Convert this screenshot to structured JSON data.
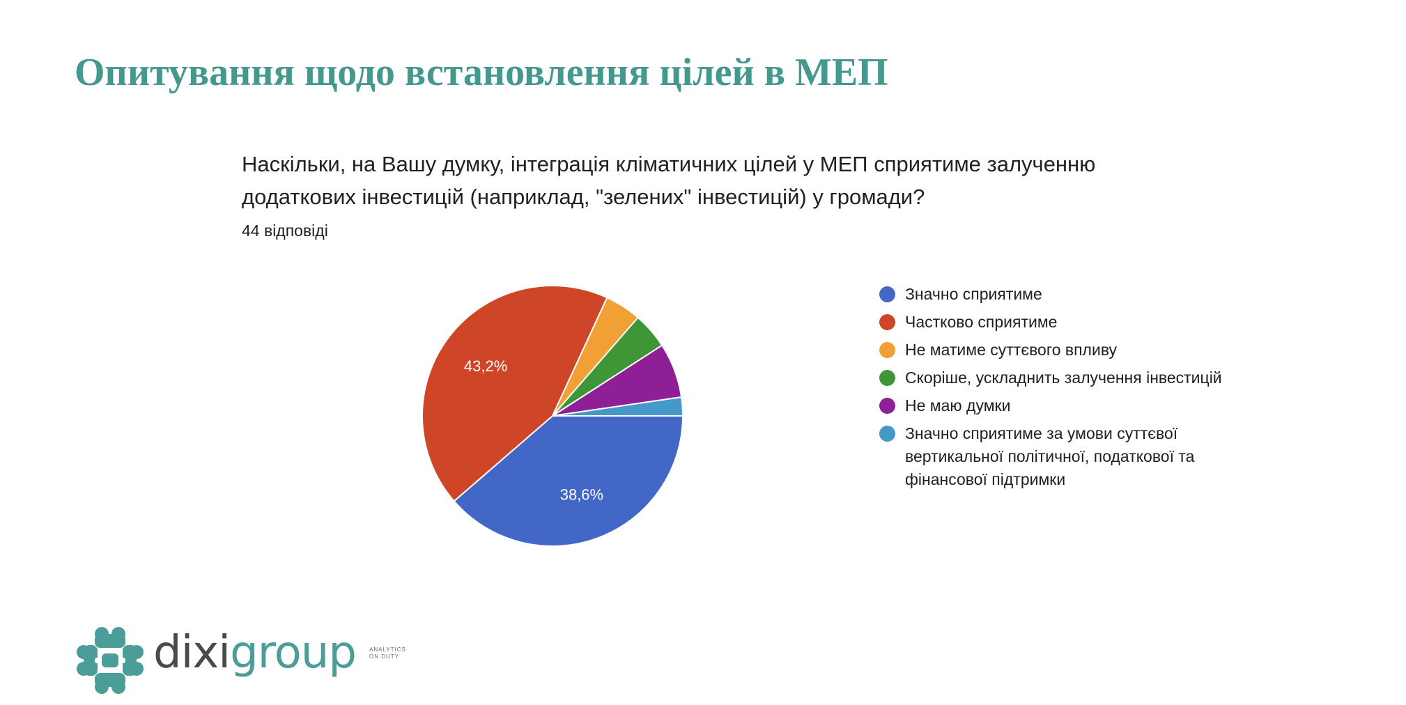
{
  "slide": {
    "title": "Опитування щодо встановлення цілей в МЕП"
  },
  "chart_data": {
    "type": "pie",
    "title_lines": [
      "Наскільки, на Вашу думку, інтеграція кліматичних цілей у МЕП сприятиме залученню",
      "додаткових інвестицій (наприклад, \"зелених\" інвестицій) у громади?"
    ],
    "subtitle": "44 відповіді",
    "total_responses": 44,
    "legend_position": "right",
    "slices": [
      {
        "label": "Значно сприятиме",
        "value": 38.6,
        "data_label": "38,6%",
        "color": "#4267c6"
      },
      {
        "label": "Частково сприятиме",
        "value": 43.2,
        "data_label": "43,2%",
        "color": "#cf4527"
      },
      {
        "label": "Не матиме суттєвого впливу",
        "value": 4.5,
        "data_label": "",
        "color": "#f0a035"
      },
      {
        "label": "Скоріше, ускладнить залучення інвестицій",
        "value": 4.5,
        "data_label": "",
        "color": "#3e9636"
      },
      {
        "label": "Не маю думки",
        "value": 6.8,
        "data_label": "",
        "color": "#8e1f96"
      },
      {
        "label": "Значно сприятиме за умови суттєвої вертикальної політичної, податкової та фінансової підтримки",
        "value": 2.3,
        "data_label": "",
        "color": "#4499c9"
      }
    ]
  },
  "logo": {
    "name_part1": "dixi",
    "name_part2": "group",
    "tagline": "ANALYTICS\nON DUTY",
    "icon": "dixigroup-logo-icon",
    "color": "#4a9d99"
  }
}
